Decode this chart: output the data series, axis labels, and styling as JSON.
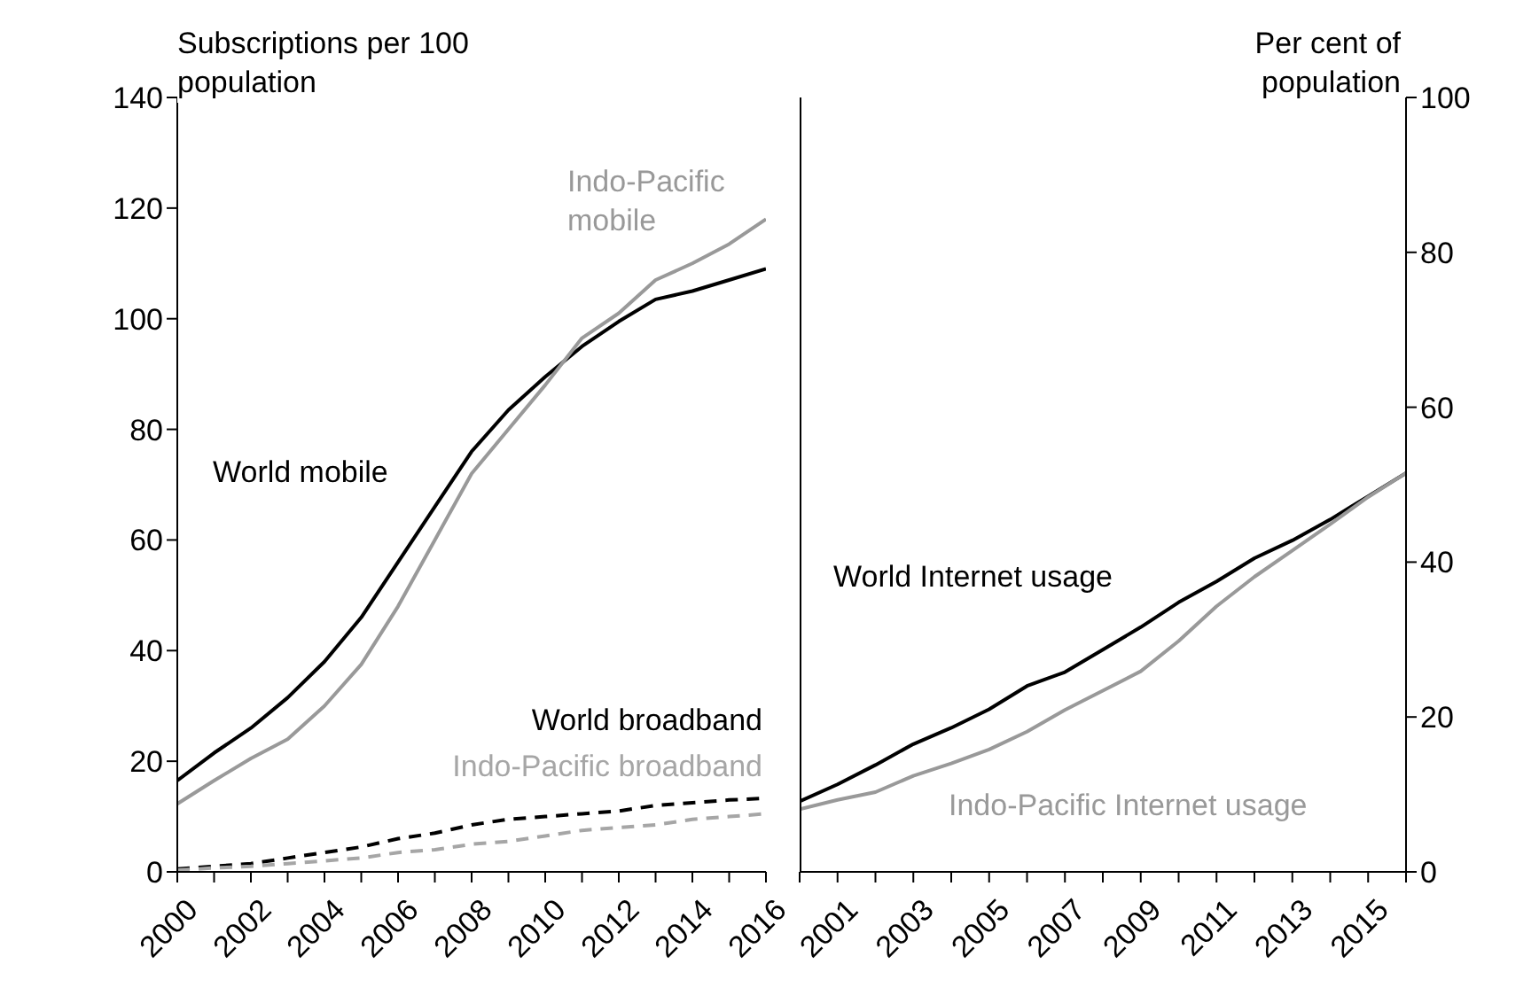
{
  "chart_data": [
    {
      "type": "line",
      "ylabel": "Subscriptions per 100 population",
      "categories": [
        "2000",
        null,
        "2002",
        null,
        "2004",
        null,
        "2006",
        null,
        "2008",
        null,
        "2010",
        null,
        "2012",
        null,
        "2014",
        null,
        "2016"
      ],
      "ylim": [
        0,
        140
      ],
      "yticks": [
        0,
        20,
        40,
        60,
        80,
        100,
        120,
        140
      ],
      "series": [
        {
          "name": "World mobile",
          "color": "#000000",
          "line_style": "solid",
          "values": [
            16.5,
            21.5,
            26,
            31.5,
            38,
            46,
            56,
            66,
            76,
            83.5,
            89.5,
            95,
            99.5,
            103.5,
            105,
            107,
            109
          ]
        },
        {
          "name": "Indo-Pacific mobile",
          "color": "#999999",
          "line_style": "solid",
          "values": [
            12.3,
            16.5,
            20.5,
            24,
            30,
            37.5,
            48,
            60,
            72,
            80,
            88,
            96.5,
            101,
            107,
            110,
            113.5,
            118
          ]
        },
        {
          "name": "World broadband",
          "color": "#000000",
          "line_style": "dashed",
          "values": [
            0.5,
            1,
            1.5,
            2.5,
            3.5,
            4.5,
            6,
            7,
            8.5,
            9.5,
            10,
            10.5,
            11,
            12,
            12.5,
            13,
            13.3
          ]
        },
        {
          "name": "Indo-Pacific broadband",
          "color": "#a6a6a6",
          "line_style": "dashed",
          "values": [
            0.3,
            0.7,
            1,
            1.5,
            2,
            2.5,
            3.5,
            4,
            5,
            5.5,
            6.5,
            7.5,
            8,
            8.5,
            9.5,
            10,
            10.5
          ]
        }
      ]
    },
    {
      "type": "line",
      "y2label": "Per cent of population",
      "categories": [
        null,
        "2001",
        null,
        "2003",
        null,
        "2005",
        null,
        "2007",
        null,
        "2009",
        null,
        "2011",
        null,
        "2013",
        null,
        "2015",
        null
      ],
      "y2lim": [
        0,
        100
      ],
      "y2ticks": [
        0,
        20,
        40,
        60,
        80,
        100
      ],
      "series": [
        {
          "name": "World Internet usage",
          "color": "#000000",
          "axis": "y2",
          "values": [
            9.1,
            11.3,
            13.8,
            16.5,
            18.6,
            21,
            24,
            25.8,
            28.7,
            31.6,
            34.8,
            37.5,
            40.5,
            42.8,
            45.5,
            48.5,
            51.5
          ]
        },
        {
          "name": "Indo-Pacific Internet usage",
          "color": "#999999",
          "axis": "y2",
          "values": [
            8.1,
            9.3,
            10.3,
            12.4,
            14,
            15.8,
            18.1,
            20.9,
            23.4,
            25.9,
            29.8,
            34.3,
            38.1,
            41.5,
            44.9,
            48.4,
            51.5
          ]
        }
      ]
    }
  ]
}
